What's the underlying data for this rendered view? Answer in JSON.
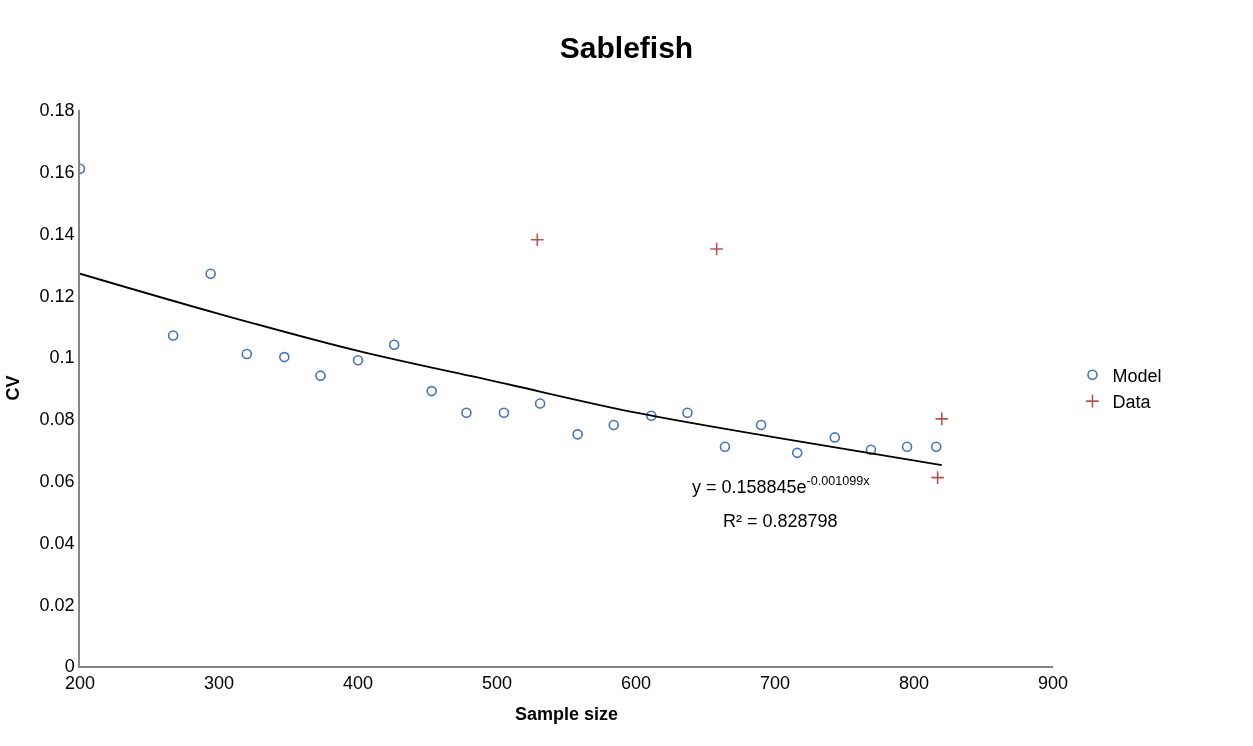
{
  "chart_data": {
    "type": "scatter",
    "title": "Sablefish",
    "xlabel": "Sample size",
    "ylabel": "CV",
    "xlim": [
      200,
      900
    ],
    "xticks": [
      200,
      300,
      400,
      500,
      600,
      700,
      800,
      900
    ],
    "ylim": [
      0,
      0.18
    ],
    "yticks": [
      0,
      0.02,
      0.04,
      0.06,
      0.08,
      0.1,
      0.12,
      0.14,
      0.16,
      0.18
    ],
    "legend": "right",
    "series": [
      {
        "name": "Model",
        "marker": "circle",
        "color": "#4472c4",
        "x": [
          200,
          267,
          294,
          320,
          347,
          373,
          400,
          426,
          453,
          478,
          505,
          531,
          558,
          584,
          611,
          637,
          664,
          690,
          716,
          743,
          769,
          795,
          816
        ],
        "values": [
          0.161,
          0.107,
          0.127,
          0.101,
          0.1,
          0.094,
          0.099,
          0.104,
          0.089,
          0.082,
          0.082,
          0.085,
          0.075,
          0.078,
          0.081,
          0.082,
          0.071,
          0.078,
          0.069,
          0.074,
          0.07,
          0.071,
          0.071
        ]
      },
      {
        "name": "Data",
        "marker": "cross",
        "color": "#c0504d",
        "x": [
          529,
          658,
          820,
          817
        ],
        "values": [
          0.138,
          0.135,
          0.08,
          0.061
        ]
      },
      {
        "type": "line",
        "color": "#000000",
        "line_style": "solid",
        "x": [
          200,
          300,
          400,
          500,
          600,
          700,
          820
        ],
        "values": [
          0.127,
          0.114,
          0.102,
          0.092,
          0.082,
          0.074,
          0.065
        ]
      }
    ],
    "annotations": [
      "y = 0.158845e$^{-0.001099x}$",
      "R² = 0.828798"
    ]
  }
}
